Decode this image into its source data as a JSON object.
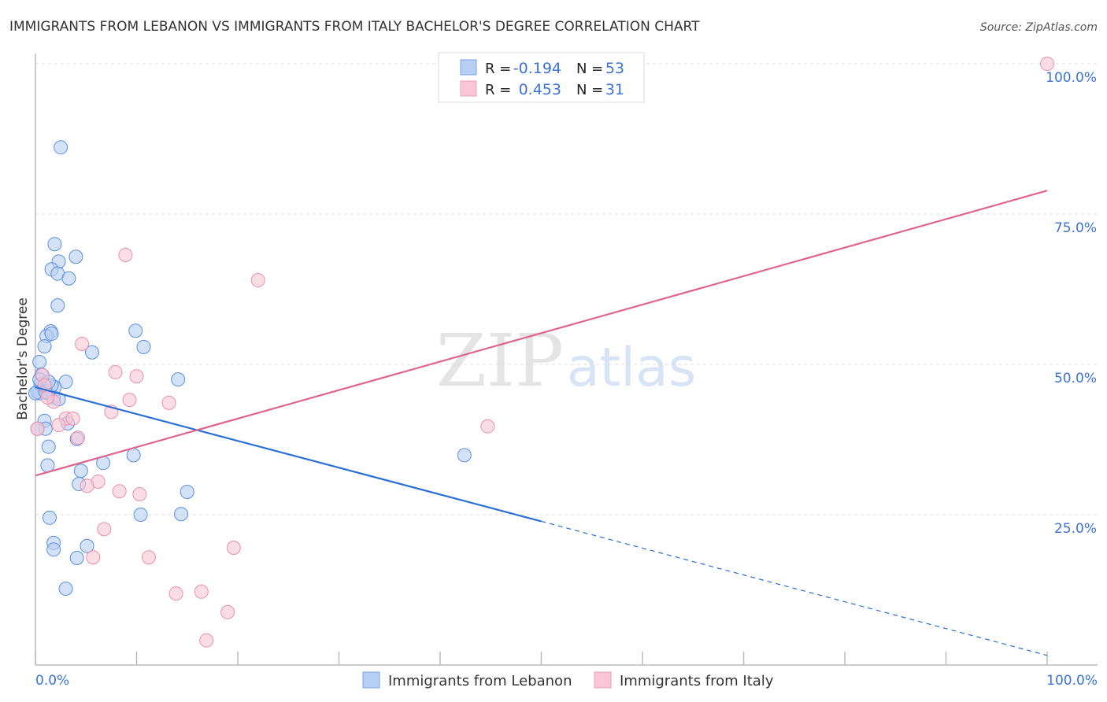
{
  "chart_data": {
    "type": "scatter",
    "title": "IMMIGRANTS FROM LEBANON VS IMMIGRANTS FROM ITALY BACHELOR'S DEGREE CORRELATION CHART",
    "source": "Source: ZipAtlas.com",
    "xlabel": "",
    "ylabel": "Bachelor's Degree",
    "xlim": [
      0,
      100
    ],
    "ylim": [
      0,
      100
    ],
    "x_tick_labels": [
      "0.0%",
      "100.0%"
    ],
    "y_ticks": [
      25,
      50,
      75,
      100
    ],
    "y_tick_labels": [
      "25.0%",
      "50.0%",
      "75.0%",
      "100.0%"
    ],
    "grid": true,
    "watermark": "ZIPatlas",
    "legend_placement": "top-center",
    "series": [
      {
        "name": "Immigrants from Lebanon",
        "color": "#5b8fe0",
        "fill": "#b7cff3",
        "line_color": "#2a6fd6",
        "R": "-0.194",
        "N": "53",
        "trend": {
          "x0": 0,
          "y0": 46.2,
          "x1": 100,
          "y1": 1.6,
          "solid_until": 50
        },
        "points": [
          [
            2.5,
            86.1
          ],
          [
            1.9,
            70.0
          ],
          [
            4.0,
            67.9
          ],
          [
            2.3,
            67.1
          ],
          [
            1.6,
            65.8
          ],
          [
            2.2,
            65.1
          ],
          [
            3.3,
            64.3
          ],
          [
            2.2,
            59.8
          ],
          [
            1.5,
            55.5
          ],
          [
            1.1,
            54.7
          ],
          [
            1.6,
            55.1
          ],
          [
            0.9,
            53.0
          ],
          [
            9.9,
            55.6
          ],
          [
            10.7,
            52.9
          ],
          [
            5.6,
            52.0
          ],
          [
            0.4,
            50.4
          ],
          [
            3.0,
            47.1
          ],
          [
            14.1,
            47.5
          ],
          [
            0.6,
            48.3
          ],
          [
            1.9,
            46.2
          ],
          [
            0.8,
            45.8
          ],
          [
            0.4,
            45.2
          ],
          [
            0.2,
            45.4
          ],
          [
            1.2,
            45.2
          ],
          [
            1.8,
            44.5
          ],
          [
            0.9,
            40.6
          ],
          [
            3.2,
            40.2
          ],
          [
            1.0,
            39.3
          ],
          [
            4.1,
            37.6
          ],
          [
            1.3,
            36.3
          ],
          [
            9.7,
            34.9
          ],
          [
            6.7,
            33.6
          ],
          [
            1.2,
            33.2
          ],
          [
            4.5,
            32.3
          ],
          [
            4.3,
            30.1
          ],
          [
            15.0,
            28.8
          ],
          [
            1.4,
            24.5
          ],
          [
            10.4,
            25.0
          ],
          [
            14.4,
            25.1
          ],
          [
            1.8,
            20.3
          ],
          [
            1.8,
            19.2
          ],
          [
            5.1,
            19.8
          ],
          [
            4.1,
            17.8
          ],
          [
            3.0,
            12.7
          ],
          [
            42.4,
            34.9
          ],
          [
            0.2,
            39.3
          ],
          [
            0.5,
            46.7
          ],
          [
            1.6,
            46.5
          ],
          [
            0.0,
            45.2
          ],
          [
            1.0,
            45.4
          ],
          [
            0.4,
            47.5
          ],
          [
            2.3,
            44.2
          ],
          [
            1.3,
            47.1
          ]
        ]
      },
      {
        "name": "Immigrants from Italy",
        "color": "#e890ad",
        "fill": "#f8c6d6",
        "line_color": "#e0648e",
        "R": "0.453",
        "N": "31",
        "trend": {
          "x0": 0,
          "y0": 31.5,
          "x1": 100,
          "y1": 78.9,
          "solid_until": 100
        },
        "points": [
          [
            100,
            100
          ],
          [
            8.9,
            68.2
          ],
          [
            22.0,
            64.0
          ],
          [
            4.6,
            53.4
          ],
          [
            7.9,
            48.7
          ],
          [
            10.0,
            48.0
          ],
          [
            9.3,
            44.1
          ],
          [
            0.7,
            48.2
          ],
          [
            0.9,
            46.5
          ],
          [
            1.8,
            43.8
          ],
          [
            7.5,
            42.1
          ],
          [
            13.2,
            43.6
          ],
          [
            3.0,
            41.0
          ],
          [
            3.7,
            41.0
          ],
          [
            2.3,
            39.9
          ],
          [
            4.2,
            37.8
          ],
          [
            0.2,
            39.3
          ],
          [
            44.7,
            39.7
          ],
          [
            6.2,
            30.5
          ],
          [
            5.1,
            29.8
          ],
          [
            8.3,
            28.9
          ],
          [
            10.3,
            28.4
          ],
          [
            6.8,
            22.6
          ],
          [
            19.6,
            19.5
          ],
          [
            5.7,
            17.9
          ],
          [
            11.2,
            17.9
          ],
          [
            13.9,
            11.9
          ],
          [
            16.4,
            12.2
          ],
          [
            19.0,
            8.8
          ],
          [
            16.9,
            4.1
          ],
          [
            1.2,
            44.5
          ]
        ]
      }
    ],
    "legend_labels": {
      "r": "R =",
      "n": "N ="
    }
  }
}
